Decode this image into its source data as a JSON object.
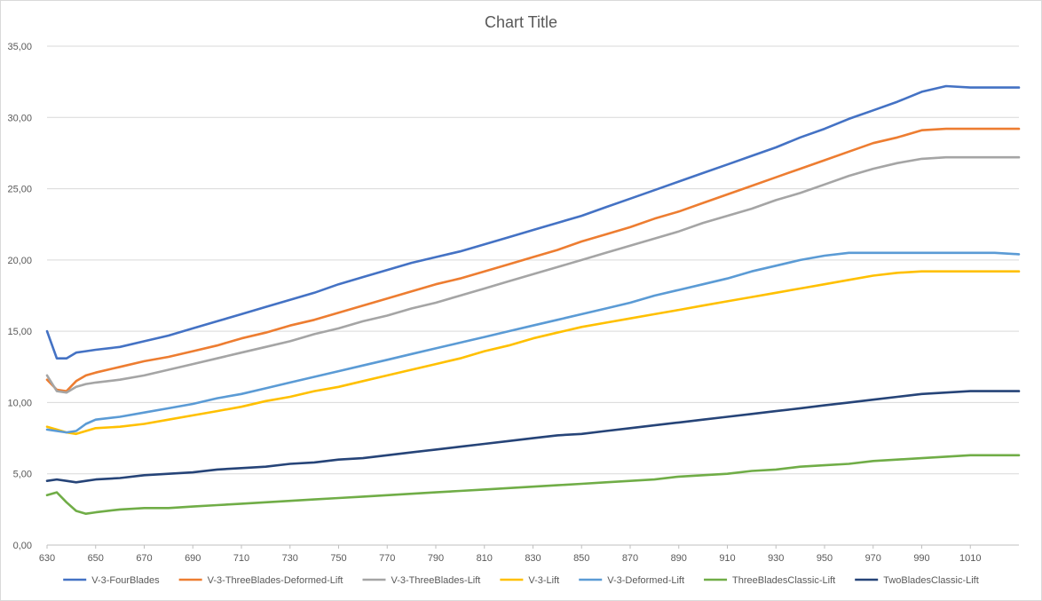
{
  "chart_data": {
    "type": "line",
    "title": "Chart Title",
    "xlabel": "",
    "ylabel": "",
    "xlim": [
      630,
      1030
    ],
    "ylim": [
      0,
      35
    ],
    "x_ticks": [
      "630",
      "650",
      "670",
      "690",
      "710",
      "730",
      "750",
      "770",
      "790",
      "810",
      "830",
      "850",
      "870",
      "890",
      "910",
      "930",
      "950",
      "970",
      "990",
      "1010"
    ],
    "y_ticks": [
      "0,00",
      "5,00",
      "10,00",
      "15,00",
      "20,00",
      "25,00",
      "30,00",
      "35,00"
    ],
    "grid": "horizontal",
    "legend_position": "bottom",
    "x": [
      630,
      634,
      638,
      642,
      646,
      650,
      660,
      670,
      680,
      690,
      700,
      710,
      720,
      730,
      740,
      750,
      760,
      770,
      780,
      790,
      800,
      810,
      820,
      830,
      840,
      850,
      860,
      870,
      880,
      890,
      900,
      910,
      920,
      930,
      940,
      950,
      960,
      970,
      980,
      990,
      1000,
      1010,
      1015,
      1020,
      1030
    ],
    "series": [
      {
        "name": "V-3-FourBlades",
        "color": "#4472c4",
        "values": [
          15.0,
          13.1,
          13.1,
          13.5,
          13.6,
          13.7,
          13.9,
          14.3,
          14.7,
          15.2,
          15.7,
          16.2,
          16.7,
          17.2,
          17.7,
          18.3,
          18.8,
          19.3,
          19.8,
          20.2,
          20.6,
          21.1,
          21.6,
          22.1,
          22.6,
          23.1,
          23.7,
          24.3,
          24.9,
          25.5,
          26.1,
          26.7,
          27.3,
          27.9,
          28.6,
          29.2,
          29.9,
          30.5,
          31.1,
          31.8,
          32.2,
          32.1,
          32.1,
          32.1,
          32.1
        ]
      },
      {
        "name": "V-3-ThreeBlades-Deformed-Lift",
        "color": "#ed7d31",
        "values": [
          11.6,
          10.9,
          10.8,
          11.5,
          11.9,
          12.1,
          12.5,
          12.9,
          13.2,
          13.6,
          14.0,
          14.5,
          14.9,
          15.4,
          15.8,
          16.3,
          16.8,
          17.3,
          17.8,
          18.3,
          18.7,
          19.2,
          19.7,
          20.2,
          20.7,
          21.3,
          21.8,
          22.3,
          22.9,
          23.4,
          24.0,
          24.6,
          25.2,
          25.8,
          26.4,
          27.0,
          27.6,
          28.2,
          28.6,
          29.1,
          29.2,
          29.2,
          29.2,
          29.2,
          29.2
        ]
      },
      {
        "name": "V-3-ThreeBlades-Lift",
        "color": "#a5a5a5",
        "values": [
          11.9,
          10.8,
          10.7,
          11.1,
          11.3,
          11.4,
          11.6,
          11.9,
          12.3,
          12.7,
          13.1,
          13.5,
          13.9,
          14.3,
          14.8,
          15.2,
          15.7,
          16.1,
          16.6,
          17.0,
          17.5,
          18.0,
          18.5,
          19.0,
          19.5,
          20.0,
          20.5,
          21.0,
          21.5,
          22.0,
          22.6,
          23.1,
          23.6,
          24.2,
          24.7,
          25.3,
          25.9,
          26.4,
          26.8,
          27.1,
          27.2,
          27.2,
          27.2,
          27.2,
          27.2
        ]
      },
      {
        "name": "V-3-Lift",
        "color": "#ffc000",
        "values": [
          8.3,
          8.1,
          7.9,
          7.8,
          8.0,
          8.2,
          8.3,
          8.5,
          8.8,
          9.1,
          9.4,
          9.7,
          10.1,
          10.4,
          10.8,
          11.1,
          11.5,
          11.9,
          12.3,
          12.7,
          13.1,
          13.6,
          14.0,
          14.5,
          14.9,
          15.3,
          15.6,
          15.9,
          16.2,
          16.5,
          16.8,
          17.1,
          17.4,
          17.7,
          18.0,
          18.3,
          18.6,
          18.9,
          19.1,
          19.2,
          19.2,
          19.2,
          19.2,
          19.2,
          19.2
        ]
      },
      {
        "name": "V-3-Deformed-Lift",
        "color": "#5b9bd5",
        "values": [
          8.1,
          8.0,
          7.9,
          8.0,
          8.5,
          8.8,
          9.0,
          9.3,
          9.6,
          9.9,
          10.3,
          10.6,
          11.0,
          11.4,
          11.8,
          12.2,
          12.6,
          13.0,
          13.4,
          13.8,
          14.2,
          14.6,
          15.0,
          15.4,
          15.8,
          16.2,
          16.6,
          17.0,
          17.5,
          17.9,
          18.3,
          18.7,
          19.2,
          19.6,
          20.0,
          20.3,
          20.5,
          20.5,
          20.5,
          20.5,
          20.5,
          20.5,
          20.5,
          20.5,
          20.4
        ]
      },
      {
        "name": "ThreeBladesClassic-Lift",
        "color": "#70ad47",
        "values": [
          3.5,
          3.7,
          3.0,
          2.4,
          2.2,
          2.3,
          2.5,
          2.6,
          2.6,
          2.7,
          2.8,
          2.9,
          3.0,
          3.1,
          3.2,
          3.3,
          3.4,
          3.5,
          3.6,
          3.7,
          3.8,
          3.9,
          4.0,
          4.1,
          4.2,
          4.3,
          4.4,
          4.5,
          4.6,
          4.8,
          4.9,
          5.0,
          5.2,
          5.3,
          5.5,
          5.6,
          5.7,
          5.9,
          6.0,
          6.1,
          6.2,
          6.3,
          6.3,
          6.3,
          6.3
        ]
      },
      {
        "name": "TwoBladesClassic-Lift",
        "color": "#264478",
        "values": [
          4.5,
          4.6,
          4.5,
          4.4,
          4.5,
          4.6,
          4.7,
          4.9,
          5.0,
          5.1,
          5.3,
          5.4,
          5.5,
          5.7,
          5.8,
          6.0,
          6.1,
          6.3,
          6.5,
          6.7,
          6.9,
          7.1,
          7.3,
          7.5,
          7.7,
          7.8,
          8.0,
          8.2,
          8.4,
          8.6,
          8.8,
          9.0,
          9.2,
          9.4,
          9.6,
          9.8,
          10.0,
          10.2,
          10.4,
          10.6,
          10.7,
          10.8,
          10.8,
          10.8,
          10.8
        ]
      }
    ]
  }
}
